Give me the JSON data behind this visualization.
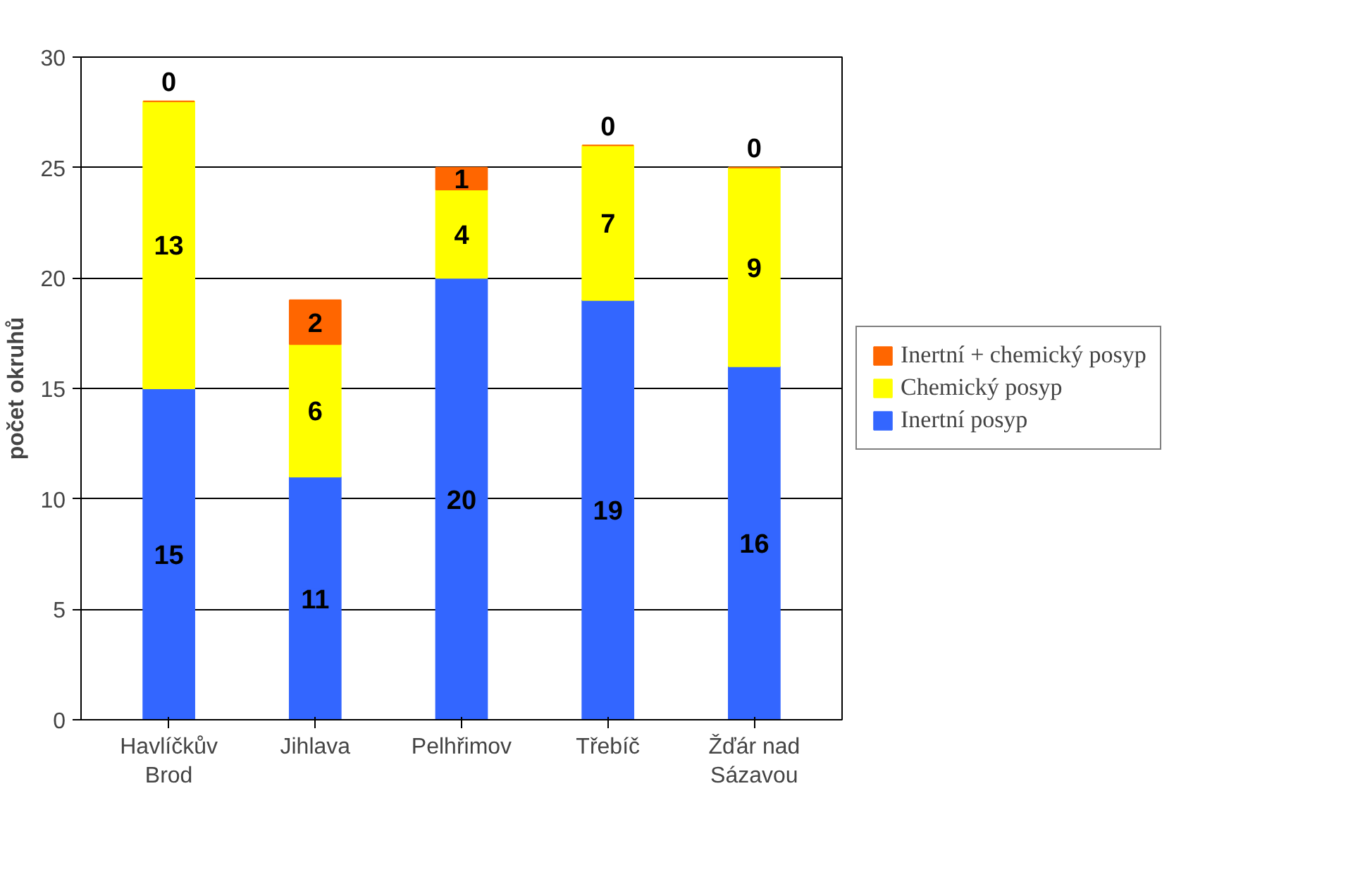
{
  "chart_data": {
    "type": "bar",
    "stacked": true,
    "ylabel": "počet okruhů",
    "categories": [
      "Havlíčkův\nBrod",
      "Jihlava",
      "Pelhřimov",
      "Třebíč",
      "Žďár nad\nSázavou"
    ],
    "series": [
      {
        "name": "Inertní posyp",
        "color": "#3366ff",
        "values": [
          15,
          11,
          20,
          19,
          16
        ]
      },
      {
        "name": "Chemický posyp",
        "color": "#ffff00",
        "values": [
          13,
          6,
          4,
          7,
          9
        ]
      },
      {
        "name": "Inertní + chemický posyp",
        "color": "#ff6600",
        "values": [
          0,
          2,
          1,
          0,
          0
        ]
      }
    ],
    "ylim": [
      0,
      30
    ],
    "yticks": [
      0,
      5,
      10,
      15,
      20,
      25,
      30
    ],
    "grid": "y",
    "legend": "right",
    "data_labels": true
  }
}
